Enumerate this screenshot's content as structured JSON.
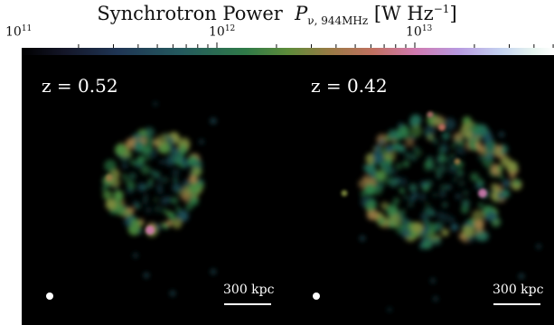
{
  "colorbar": {
    "title_main": "Synchrotron Power",
    "title_symbol": "P",
    "title_subscript": "ν, 944MHz",
    "title_units_prefix": "[W Hz",
    "title_units_exp": "−1",
    "title_units_suffix": "]",
    "scale": "log",
    "ticks": [
      {
        "base": "10",
        "exp": "11"
      },
      {
        "base": "10",
        "exp": "12"
      },
      {
        "base": "10",
        "exp": "13"
      }
    ],
    "colormap_colors": [
      "#000000",
      "#1f3554",
      "#2f7a48",
      "#9a7a45",
      "#d07ab0",
      "#b89ae0",
      "#e6f4ef",
      "#ffffff"
    ]
  },
  "panels": [
    {
      "id": "left",
      "redshift_label": "z = 0.52",
      "scalebar_label": "300 kpc",
      "beam": "beam-marker"
    },
    {
      "id": "right",
      "redshift_label": "z = 0.42",
      "scalebar_label": "300 kpc",
      "beam": "beam-marker"
    }
  ]
}
